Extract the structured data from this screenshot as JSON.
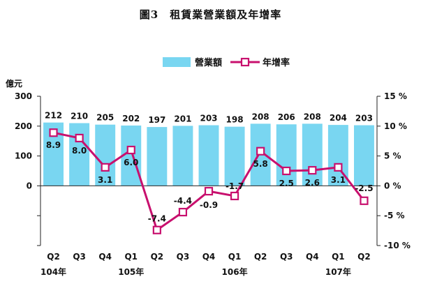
{
  "figure_title": "圖3　租賃業營業額及年增率",
  "chart_data": {
    "type": "bar",
    "title": "圖3　租賃業營業額及年增率",
    "categories": [
      "Q2",
      "Q3",
      "Q4",
      "Q1",
      "Q2",
      "Q3",
      "Q4",
      "Q1",
      "Q2",
      "Q3",
      "Q4",
      "Q1",
      "Q2"
    ],
    "year_labels": [
      "104年",
      "105年",
      "106年",
      "107年"
    ],
    "year_label_at": [
      0,
      3,
      7,
      11
    ],
    "ylabel_left": "億元",
    "ylim_left": [
      -200,
      300
    ],
    "yticks_left": [
      0,
      100,
      200,
      300
    ],
    "ylim_right": [
      -10,
      15
    ],
    "yticks_right": [
      -10,
      -5,
      0,
      5,
      10,
      15
    ],
    "ytick_right_labels": [
      "-10 %",
      "-5 %",
      "0 %",
      "5 %",
      "10 %",
      "15 %"
    ],
    "series": [
      {
        "name": "營業額",
        "kind": "bar",
        "axis": "left",
        "color": "#79D6F1",
        "values": [
          212,
          210,
          205,
          202,
          197,
          201,
          203,
          198,
          208,
          206,
          208,
          204,
          203
        ],
        "labels": [
          "212",
          "210",
          "205",
          "202",
          "197",
          "201",
          "203",
          "198",
          "208",
          "206",
          "208",
          "204",
          "203"
        ]
      },
      {
        "name": "年增率",
        "kind": "line",
        "axis": "right",
        "color": "#C8106E",
        "values": [
          8.9,
          8.0,
          3.1,
          6.0,
          -7.4,
          -4.4,
          -0.9,
          -1.7,
          5.8,
          2.5,
          2.6,
          3.1,
          -2.5
        ],
        "labels": [
          "8.9",
          "8.0",
          "3.1",
          "6.0",
          "-7.4",
          "-4.4",
          "-0.9",
          "-1.7",
          "5.8",
          "2.5",
          "2.6",
          "3.1",
          "-2.5"
        ]
      }
    ],
    "legend_position": "top-center",
    "grid": false
  }
}
